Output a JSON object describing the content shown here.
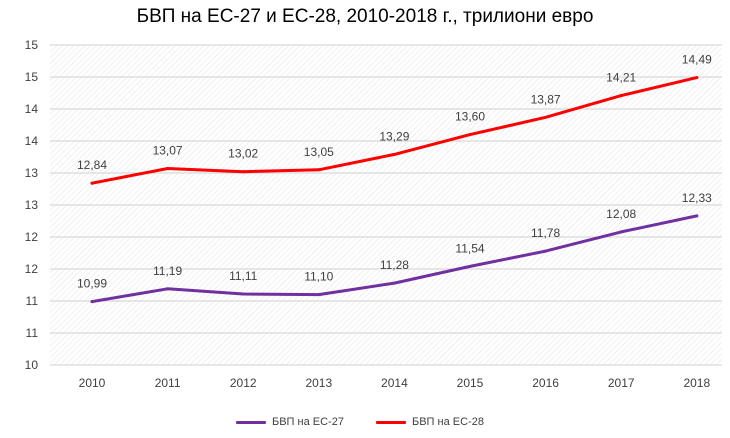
{
  "chart_data": {
    "type": "line",
    "title": "БВП на ЕС-27 и ЕС-28, 2010-2018 г., трилиони евро",
    "categories": [
      "2010",
      "2011",
      "2012",
      "2013",
      "2014",
      "2015",
      "2016",
      "2017",
      "2018"
    ],
    "y_tick_labels": [
      "10",
      "11",
      "11",
      "12",
      "12",
      "13",
      "13",
      "14",
      "14",
      "15",
      "15"
    ],
    "ylim": [
      10,
      15
    ],
    "grid": true,
    "legend_position": "bottom",
    "series": [
      {
        "name": "БВП на ЕС-27",
        "color": "#7030A0",
        "values": [
          10.99,
          11.19,
          11.11,
          11.1,
          11.28,
          11.54,
          11.78,
          12.08,
          12.33
        ],
        "labels": [
          "10,99",
          "11,19",
          "11,11",
          "11,10",
          "11,28",
          "11,54",
          "11,78",
          "12,08",
          "12,33"
        ]
      },
      {
        "name": "БВП на ЕС-28",
        "color": "#FF0000",
        "values": [
          12.84,
          13.07,
          13.02,
          13.05,
          13.29,
          13.6,
          13.87,
          14.21,
          14.49
        ],
        "labels": [
          "12,84",
          "13,07",
          "13,02",
          "13,05",
          "13,29",
          "13,60",
          "13,87",
          "14,21",
          "14,49"
        ]
      }
    ]
  }
}
